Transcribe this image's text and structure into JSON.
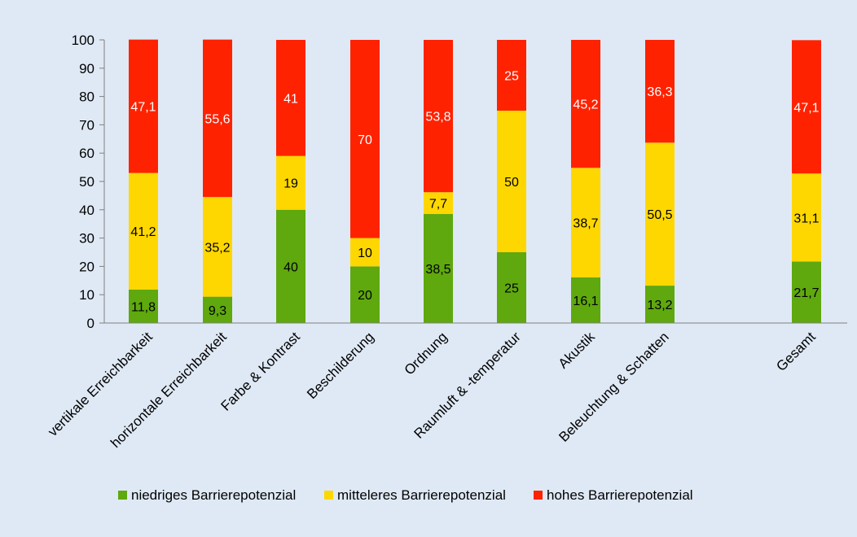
{
  "colors": {
    "background": "#dfe9f5",
    "niedrig": "#5fa80e",
    "mittel": "#ffd700",
    "hoch": "#ff2200",
    "axis": "#808080",
    "label_dark": "#000000",
    "label_light": "#ffffff"
  },
  "chart_data": {
    "type": "bar",
    "stacked": true,
    "categories": [
      "vertikale Erreichbarkeit",
      "horizontale Erreichbarkeit",
      "Farbe & Kontrast",
      "Beschilderung",
      "Ordnung",
      "Raumluft & -temperatur",
      "Akustik",
      "Beleuchtung & Schatten",
      "Gesamt"
    ],
    "series": [
      {
        "name": "niedriges Barrierepotenzial",
        "values": [
          11.8,
          9.3,
          40,
          20,
          38.5,
          25,
          16.1,
          13.2,
          21.7
        ],
        "labels": [
          "11,8",
          "9,3",
          "40",
          "20",
          "38,5",
          "25",
          "16,1",
          "13,2",
          "21,7"
        ]
      },
      {
        "name": "mitteleres Barrierepotenzial",
        "values": [
          41.2,
          35.2,
          19,
          10,
          7.7,
          50,
          38.7,
          50.5,
          31.1
        ],
        "labels": [
          "41,2",
          "35,2",
          "19",
          "10",
          "7,7",
          "50",
          "38,7",
          "50,5",
          "31,1"
        ]
      },
      {
        "name": "hohes Barrierepotenzial",
        "values": [
          47.1,
          55.6,
          41,
          70,
          53.8,
          25,
          45.2,
          36.3,
          47.1
        ],
        "labels": [
          "47,1",
          "55,6",
          "41",
          "70",
          "53,8",
          "25",
          "45,2",
          "36,3",
          "47,1"
        ]
      }
    ],
    "ylim": [
      0,
      100
    ],
    "yticks": [
      "0",
      "10",
      "20",
      "30",
      "40",
      "50",
      "60",
      "70",
      "80",
      "90",
      "100"
    ],
    "grid": false,
    "legend_position": "bottom"
  }
}
